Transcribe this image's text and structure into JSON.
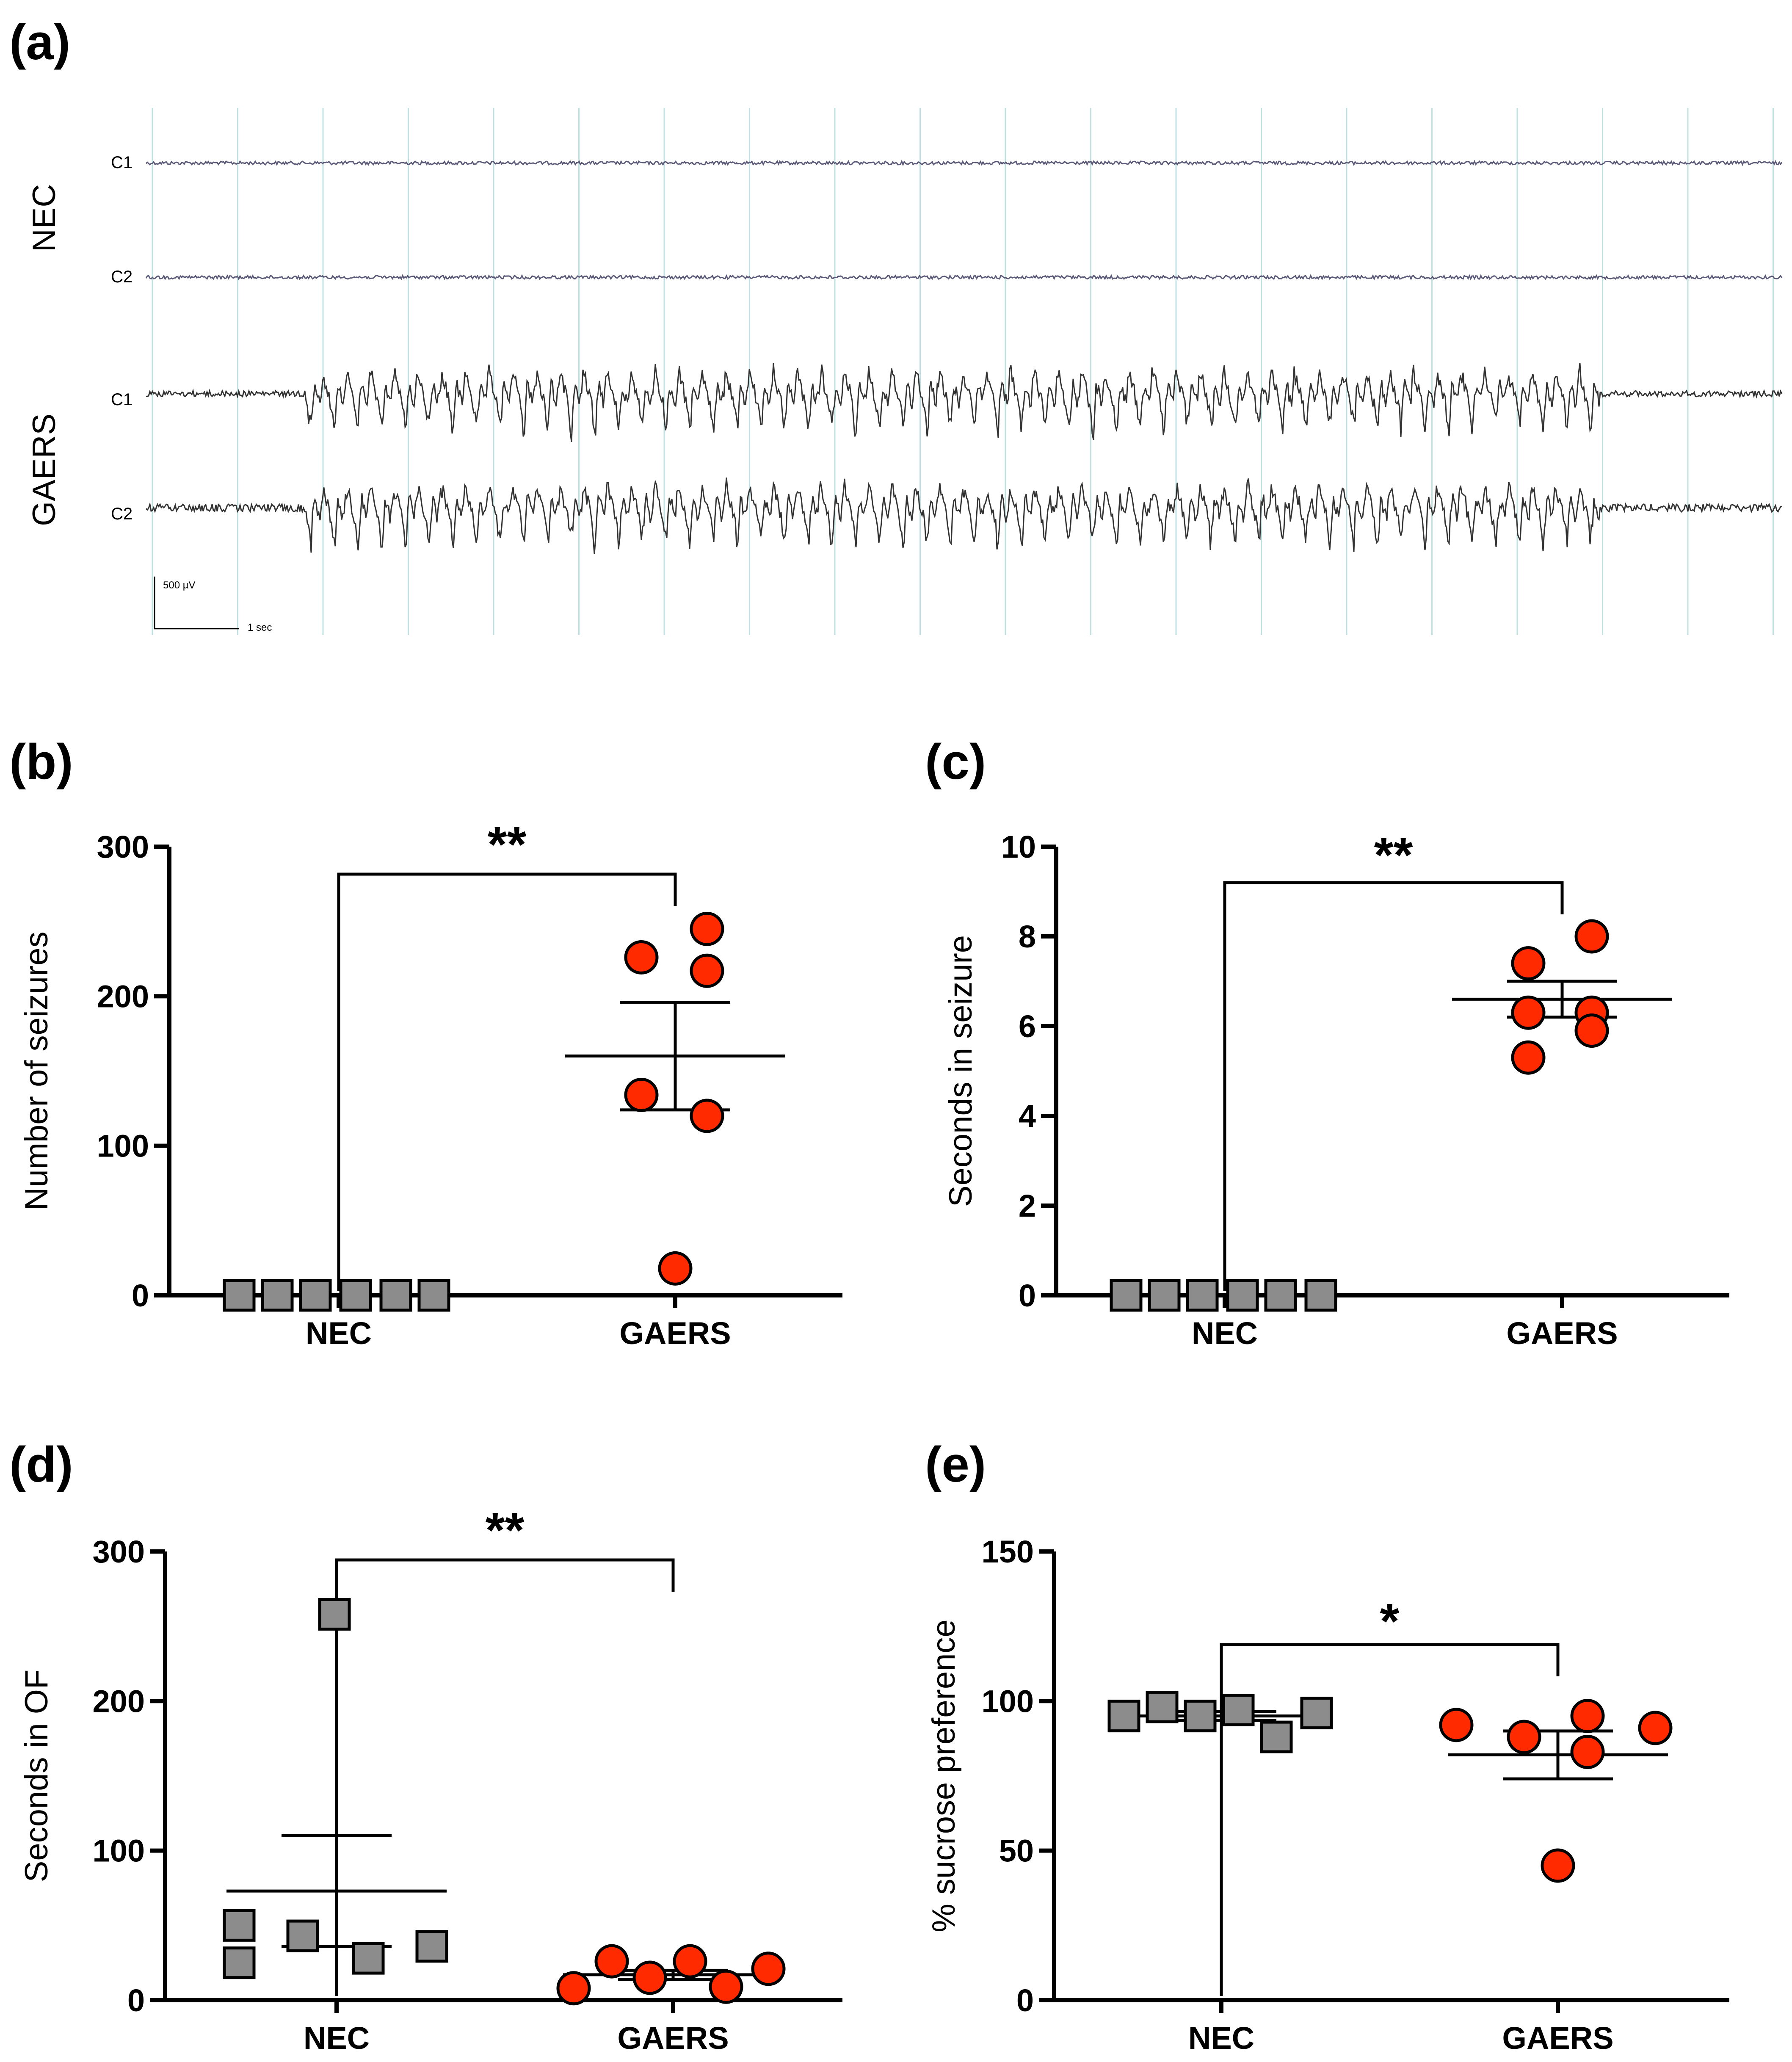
{
  "eeg": {
    "panel_label": "(a)",
    "groups": [
      {
        "name": "NEC",
        "channels": [
          "C1",
          "C2"
        ]
      },
      {
        "name": "GAERS",
        "channels": [
          "C1",
          "C2"
        ]
      }
    ],
    "scale_amplitude": "500 µV",
    "scale_time": "1 sec",
    "grid_color": "#bfe0e0",
    "trace_color_nec": "#5a5a78",
    "trace_color_gaers": "#333333"
  },
  "colors": {
    "nec_marker": "#8c8c8c",
    "gaers_marker": "#ff2a00",
    "axis": "#000000"
  },
  "chart_data": [
    {
      "id": "b",
      "type": "scatter",
      "panel_label": "(b)",
      "ylabel": "Number of seizures",
      "categories": [
        "NEC",
        "GAERS"
      ],
      "ylim": [
        0,
        300
      ],
      "yticks": [
        "0",
        "100",
        "200",
        "300"
      ],
      "significance": "**",
      "series": [
        {
          "name": "NEC",
          "marker": "square",
          "values": [
            0,
            0,
            0,
            0,
            0,
            0
          ]
        },
        {
          "name": "GAERS",
          "marker": "circle",
          "values": [
            245,
            217,
            226,
            134,
            120,
            18
          ]
        }
      ],
      "summary": [
        {
          "group": "NEC",
          "mean": 0,
          "sem": 0
        },
        {
          "group": "GAERS",
          "mean": 160,
          "sem": 36
        }
      ]
    },
    {
      "id": "c",
      "type": "scatter",
      "panel_label": "(c)",
      "ylabel": "Seconds in seizure",
      "categories": [
        "NEC",
        "GAERS"
      ],
      "ylim": [
        0,
        10
      ],
      "yticks": [
        "0",
        "2",
        "4",
        "6",
        "8",
        "10"
      ],
      "significance": "**",
      "series": [
        {
          "name": "NEC",
          "marker": "square",
          "values": [
            0,
            0,
            0,
            0,
            0,
            0
          ]
        },
        {
          "name": "GAERS",
          "marker": "circle",
          "values": [
            8.0,
            7.4,
            6.3,
            6.3,
            5.9,
            5.3
          ]
        }
      ],
      "summary": [
        {
          "group": "NEC",
          "mean": 0,
          "sem": 0
        },
        {
          "group": "GAERS",
          "mean": 6.6,
          "sem": 0.4
        }
      ]
    },
    {
      "id": "d",
      "type": "scatter",
      "panel_label": "(d)",
      "ylabel": "Seconds in OF",
      "categories": [
        "NEC",
        "GAERS"
      ],
      "ylim": [
        0,
        300
      ],
      "yticks": [
        "0",
        "100",
        "200",
        "300"
      ],
      "significance": "**",
      "series": [
        {
          "name": "NEC",
          "marker": "square",
          "values": [
            258,
            50,
            25,
            43,
            28,
            36
          ]
        },
        {
          "name": "GAERS",
          "marker": "circle",
          "values": [
            8,
            26,
            15,
            26,
            9,
            21
          ]
        }
      ],
      "summary": [
        {
          "group": "NEC",
          "mean": 73,
          "sem": 37
        },
        {
          "group": "GAERS",
          "mean": 17,
          "sem": 3
        }
      ]
    },
    {
      "id": "e",
      "type": "scatter",
      "panel_label": "(e)",
      "ylabel": "% sucrose preference",
      "categories": [
        "NEC",
        "GAERS"
      ],
      "ylim": [
        0,
        150
      ],
      "yticks": [
        "0",
        "50",
        "100",
        "150"
      ],
      "significance": "*",
      "series": [
        {
          "name": "NEC",
          "marker": "square",
          "values": [
            95,
            98,
            95,
            97,
            88,
            96
          ]
        },
        {
          "name": "GAERS",
          "marker": "circle",
          "values": [
            92,
            88,
            95,
            83,
            45,
            91
          ]
        }
      ],
      "summary": [
        {
          "group": "NEC",
          "mean": 95,
          "sem": 1.5
        },
        {
          "group": "GAERS",
          "mean": 82,
          "sem": 8
        }
      ]
    }
  ]
}
